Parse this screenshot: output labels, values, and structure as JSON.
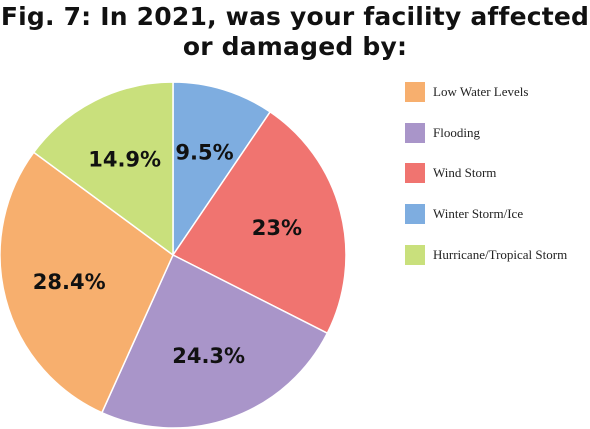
{
  "title_line1": "Fig. 7: In 2021, was your facility affected",
  "title_line2": "or damaged by:",
  "chart_data": {
    "type": "pie",
    "title": "Fig. 7: In 2021, was your facility affected or damaged by:",
    "legend_position": "right",
    "slices": [
      {
        "label": "Low Water Levels",
        "value": 28.4,
        "display": "28.4%",
        "color": "#F7AF6E"
      },
      {
        "label": "Flooding",
        "value": 24.3,
        "display": "24.3%",
        "color": "#A995C9"
      },
      {
        "label": "Wind Storm",
        "value": 23,
        "display": "23%",
        "color": "#F07470"
      },
      {
        "label": "Winter Storm/Ice",
        "value": 9.5,
        "display": "9.5%",
        "color": "#7EADE0"
      },
      {
        "label": "Hurricane/Tropical Storm",
        "value": 14.9,
        "display": "14.9%",
        "color": "#C9E07C"
      }
    ],
    "slice_draw_order": [
      "Winter Storm/Ice",
      "Wind Storm",
      "Flooding",
      "Low Water Levels",
      "Hurricane/Tropical Storm"
    ]
  }
}
